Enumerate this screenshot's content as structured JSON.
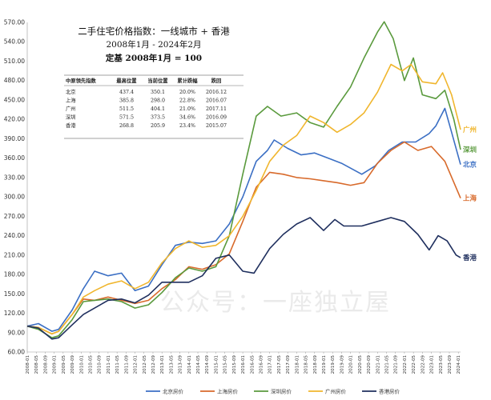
{
  "chart_data": {
    "type": "line",
    "title": "二手住宅价格指数：一线城市 + 香港",
    "subtitle_1": "2008年1月 - 2024年2月",
    "subtitle_2": "定基 2008年1月 = 100",
    "watermark": "公众号：一座独立屋",
    "ylim": [
      60,
      570
    ],
    "y_ticks": [
      "60.00",
      "90.00",
      "120.00",
      "150.00",
      "180.00",
      "210.00",
      "240.00",
      "270.00",
      "300.00",
      "330.00",
      "360.00",
      "390.00",
      "420.00",
      "450.00",
      "480.00",
      "510.00",
      "540.00",
      "570.00"
    ],
    "x_ticks": [
      "2008-01",
      "2008-05",
      "2008-09",
      "2009-01",
      "2009-05",
      "2009-09",
      "2010-01",
      "2010-05",
      "2010-09",
      "2011-01",
      "2011-05",
      "2011-09",
      "2012-01",
      "2012-05",
      "2012-09",
      "2013-01",
      "2013-05",
      "2013-09",
      "2014-01",
      "2014-05",
      "2014-09",
      "2015-01",
      "2015-05",
      "2015-09",
      "2016-01",
      "2016-05",
      "2016-09",
      "2017-01",
      "2017-05",
      "2017-09",
      "2018-01",
      "2018-05",
      "2018-09",
      "2019-01",
      "2019-05",
      "2019-09",
      "2020-01",
      "2020-05",
      "2020-09",
      "2021-01",
      "2021-05",
      "2021-09",
      "2022-01",
      "2022-05",
      "2022-09",
      "2023-01",
      "2023-05",
      "2023-09",
      "2024-01"
    ],
    "table": {
      "headers": [
        "中原领先指数",
        "最高位置",
        "当前位置",
        "累计跌幅",
        "跌回"
      ],
      "rows": [
        [
          "北京",
          "437.4",
          "350.1",
          "20.0%",
          "2016.12"
        ],
        [
          "上海",
          "385.8",
          "298.0",
          "22.8%",
          "2016.07"
        ],
        [
          "广州",
          "511.5",
          "404.1",
          "21.0%",
          "2017.11"
        ],
        [
          "深圳",
          "571.5",
          "373.5",
          "34.6%",
          "2016.09"
        ],
        [
          "香港",
          "268.8",
          "205.9",
          "23.4%",
          "2015.07"
        ]
      ]
    },
    "series": [
      {
        "name": "北京房价",
        "end_label": "北京",
        "color": "#3b6fc4",
        "points": [
          [
            "2008-01",
            100
          ],
          [
            "2008-06",
            104
          ],
          [
            "2008-12",
            92
          ],
          [
            "2009-03",
            95
          ],
          [
            "2009-09",
            125
          ],
          [
            "2010-02",
            158
          ],
          [
            "2010-07",
            185
          ],
          [
            "2011-01",
            178
          ],
          [
            "2011-07",
            182
          ],
          [
            "2012-01",
            155
          ],
          [
            "2012-07",
            162
          ],
          [
            "2013-01",
            195
          ],
          [
            "2013-07",
            225
          ],
          [
            "2014-01",
            230
          ],
          [
            "2014-07",
            228
          ],
          [
            "2015-01",
            232
          ],
          [
            "2015-07",
            258
          ],
          [
            "2016-01",
            300
          ],
          [
            "2016-07",
            355
          ],
          [
            "2016-12",
            372
          ],
          [
            "2017-03",
            388
          ],
          [
            "2017-09",
            375
          ],
          [
            "2018-03",
            365
          ],
          [
            "2018-09",
            368
          ],
          [
            "2019-03",
            360
          ],
          [
            "2019-09",
            352
          ],
          [
            "2020-06",
            335
          ],
          [
            "2020-12",
            348
          ],
          [
            "2021-06",
            372
          ],
          [
            "2021-12",
            385
          ],
          [
            "2022-06",
            385
          ],
          [
            "2022-12",
            398
          ],
          [
            "2023-03",
            410
          ],
          [
            "2023-07",
            437
          ],
          [
            "2023-10",
            400
          ],
          [
            "2024-02",
            350
          ]
        ]
      },
      {
        "name": "上海房价",
        "end_label": "上海",
        "color": "#d86a2b",
        "points": [
          [
            "2008-01",
            100
          ],
          [
            "2008-06",
            98
          ],
          [
            "2008-12",
            88
          ],
          [
            "2009-03",
            92
          ],
          [
            "2009-09",
            118
          ],
          [
            "2010-02",
            142
          ],
          [
            "2010-07",
            140
          ],
          [
            "2011-01",
            145
          ],
          [
            "2011-07",
            140
          ],
          [
            "2012-01",
            135
          ],
          [
            "2012-07",
            140
          ],
          [
            "2013-01",
            158
          ],
          [
            "2013-07",
            172
          ],
          [
            "2014-01",
            192
          ],
          [
            "2014-07",
            188
          ],
          [
            "2015-01",
            195
          ],
          [
            "2015-07",
            212
          ],
          [
            "2016-01",
            262
          ],
          [
            "2016-07",
            315
          ],
          [
            "2017-01",
            338
          ],
          [
            "2017-07",
            335
          ],
          [
            "2018-01",
            330
          ],
          [
            "2018-07",
            328
          ],
          [
            "2019-01",
            325
          ],
          [
            "2019-07",
            322
          ],
          [
            "2020-01",
            318
          ],
          [
            "2020-07",
            322
          ],
          [
            "2021-01",
            352
          ],
          [
            "2021-07",
            372
          ],
          [
            "2022-01",
            385
          ],
          [
            "2022-07",
            372
          ],
          [
            "2023-01",
            378
          ],
          [
            "2023-07",
            355
          ],
          [
            "2024-02",
            298
          ]
        ]
      },
      {
        "name": "深圳房价",
        "end_label": "深圳",
        "color": "#5a9a3d",
        "points": [
          [
            "2008-01",
            100
          ],
          [
            "2008-06",
            95
          ],
          [
            "2008-12",
            82
          ],
          [
            "2009-03",
            85
          ],
          [
            "2009-09",
            110
          ],
          [
            "2010-02",
            138
          ],
          [
            "2010-07",
            140
          ],
          [
            "2011-01",
            142
          ],
          [
            "2011-07",
            138
          ],
          [
            "2012-01",
            128
          ],
          [
            "2012-07",
            133
          ],
          [
            "2013-01",
            152
          ],
          [
            "2013-07",
            175
          ],
          [
            "2014-01",
            190
          ],
          [
            "2014-07",
            185
          ],
          [
            "2015-01",
            192
          ],
          [
            "2015-07",
            240
          ],
          [
            "2016-01",
            335
          ],
          [
            "2016-07",
            425
          ],
          [
            "2016-12",
            440
          ],
          [
            "2017-06",
            425
          ],
          [
            "2018-01",
            430
          ],
          [
            "2018-07",
            415
          ],
          [
            "2019-01",
            408
          ],
          [
            "2019-07",
            440
          ],
          [
            "2020-01",
            470
          ],
          [
            "2020-07",
            515
          ],
          [
            "2021-01",
            555
          ],
          [
            "2021-04",
            571
          ],
          [
            "2021-08",
            545
          ],
          [
            "2022-01",
            480
          ],
          [
            "2022-05",
            515
          ],
          [
            "2022-09",
            458
          ],
          [
            "2023-03",
            452
          ],
          [
            "2023-07",
            465
          ],
          [
            "2023-11",
            420
          ],
          [
            "2024-02",
            373
          ]
        ]
      },
      {
        "name": "广州房价",
        "end_label": "广州",
        "color": "#f0b62e",
        "points": [
          [
            "2008-01",
            100
          ],
          [
            "2008-06",
            98
          ],
          [
            "2008-12",
            88
          ],
          [
            "2009-03",
            92
          ],
          [
            "2009-09",
            118
          ],
          [
            "2010-02",
            145
          ],
          [
            "2010-07",
            155
          ],
          [
            "2011-01",
            165
          ],
          [
            "2011-07",
            170
          ],
          [
            "2012-01",
            158
          ],
          [
            "2012-07",
            168
          ],
          [
            "2013-01",
            198
          ],
          [
            "2013-07",
            220
          ],
          [
            "2014-01",
            232
          ],
          [
            "2014-07",
            222
          ],
          [
            "2015-01",
            225
          ],
          [
            "2015-07",
            240
          ],
          [
            "2016-01",
            270
          ],
          [
            "2016-07",
            310
          ],
          [
            "2017-01",
            355
          ],
          [
            "2017-07",
            380
          ],
          [
            "2018-01",
            395
          ],
          [
            "2018-07",
            425
          ],
          [
            "2019-01",
            415
          ],
          [
            "2019-07",
            400
          ],
          [
            "2020-01",
            412
          ],
          [
            "2020-07",
            430
          ],
          [
            "2021-01",
            462
          ],
          [
            "2021-07",
            505
          ],
          [
            "2021-12",
            495
          ],
          [
            "2022-04",
            505
          ],
          [
            "2022-09",
            478
          ],
          [
            "2023-03",
            475
          ],
          [
            "2023-06",
            492
          ],
          [
            "2023-10",
            458
          ],
          [
            "2024-02",
            404
          ]
        ]
      },
      {
        "name": "香港房价",
        "end_label": "香港",
        "color": "#1f2f5e",
        "points": [
          [
            "2008-01",
            100
          ],
          [
            "2008-06",
            97
          ],
          [
            "2008-12",
            80
          ],
          [
            "2009-03",
            82
          ],
          [
            "2009-09",
            102
          ],
          [
            "2010-02",
            118
          ],
          [
            "2010-07",
            128
          ],
          [
            "2011-01",
            140
          ],
          [
            "2011-07",
            142
          ],
          [
            "2012-01",
            136
          ],
          [
            "2012-07",
            148
          ],
          [
            "2013-01",
            168
          ],
          [
            "2013-07",
            168
          ],
          [
            "2014-01",
            168
          ],
          [
            "2014-07",
            178
          ],
          [
            "2015-01",
            205
          ],
          [
            "2015-07",
            210
          ],
          [
            "2016-01",
            185
          ],
          [
            "2016-06",
            182
          ],
          [
            "2017-01",
            220
          ],
          [
            "2017-07",
            242
          ],
          [
            "2018-01",
            258
          ],
          [
            "2018-07",
            268
          ],
          [
            "2019-01",
            248
          ],
          [
            "2019-06",
            265
          ],
          [
            "2019-10",
            255
          ],
          [
            "2020-06",
            255
          ],
          [
            "2021-01",
            262
          ],
          [
            "2021-07",
            268
          ],
          [
            "2022-01",
            262
          ],
          [
            "2022-07",
            242
          ],
          [
            "2022-12",
            218
          ],
          [
            "2023-04",
            240
          ],
          [
            "2023-08",
            232
          ],
          [
            "2023-12",
            210
          ],
          [
            "2024-02",
            206
          ]
        ]
      }
    ],
    "legend_position": "bottom-center",
    "grid": false
  }
}
